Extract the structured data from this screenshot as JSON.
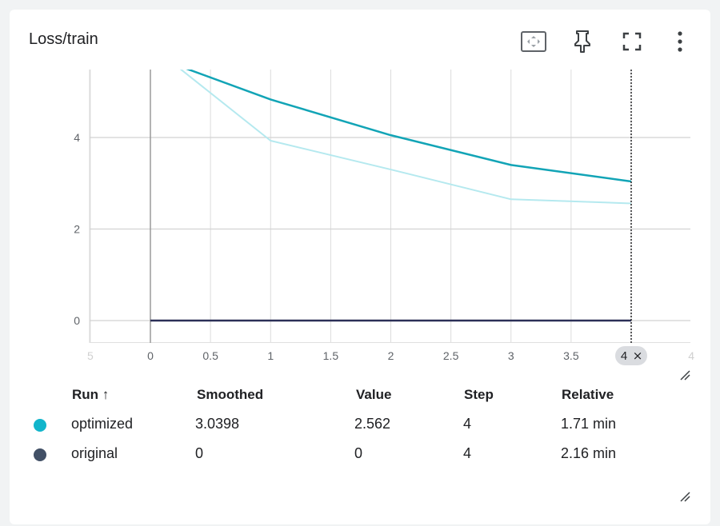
{
  "card": {
    "title": "Loss/train",
    "toolbar": [
      {
        "name": "fit-domain-button",
        "icon": "fit-to-data-icon"
      },
      {
        "name": "pin-button",
        "icon": "pin-icon"
      },
      {
        "name": "fullscreen-button",
        "icon": "fullscreen-icon"
      },
      {
        "name": "more-menu-button",
        "icon": "more-vert-icon"
      }
    ]
  },
  "chart_data": {
    "type": "line",
    "x_ticks": [
      "5",
      "0",
      "0.5",
      "1",
      "1.5",
      "2",
      "2.5",
      "3",
      "3.5",
      "4",
      "4"
    ],
    "y_ticks": [
      "0",
      "2",
      "4"
    ],
    "xlim": [
      -0.5,
      4.5
    ],
    "ylim": [
      -0.5,
      5.5
    ],
    "hover_x_label": "4",
    "hover_x": 4,
    "series": [
      {
        "name": "optimized",
        "style": "smoothed",
        "color": "#12a4b6",
        "x": [
          0.2,
          1,
          2,
          3,
          4
        ],
        "y": [
          5.6,
          4.83,
          4.05,
          3.4,
          3.04
        ]
      },
      {
        "name": "optimized",
        "style": "raw",
        "color": "#b5e9ef",
        "x": [
          0.2,
          1,
          2,
          3,
          4
        ],
        "y": [
          5.6,
          3.93,
          3.3,
          2.65,
          2.56
        ]
      },
      {
        "name": "original",
        "style": "smoothed",
        "color": "#2b2f57",
        "x": [
          0,
          1,
          2,
          3,
          4
        ],
        "y": [
          0,
          0,
          0,
          0,
          0
        ]
      }
    ]
  },
  "table": {
    "headers": {
      "run": "Run ↑",
      "smoothed": "Smoothed",
      "value": "Value",
      "step": "Step",
      "relative": "Relative"
    },
    "rows": [
      {
        "color": "#12b5cb",
        "run": "optimized",
        "smoothed": "3.0398",
        "value": "2.562",
        "step": "4",
        "relative": "1.71 min"
      },
      {
        "color": "#425066",
        "run": "original",
        "smoothed": "0",
        "value": "0",
        "step": "4",
        "relative": "2.16 min"
      }
    ]
  }
}
